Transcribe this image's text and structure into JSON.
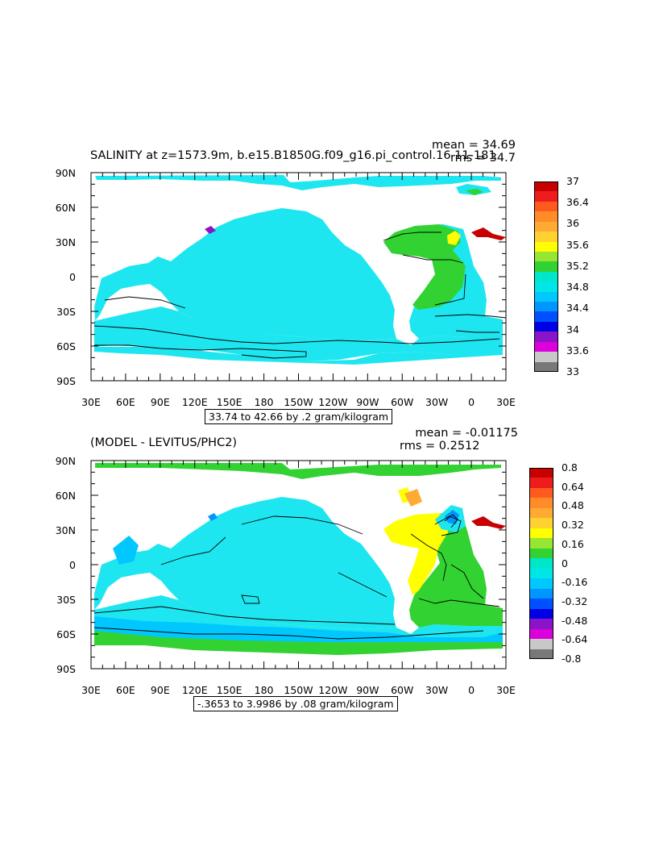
{
  "panels": [
    {
      "title": "SALINITY at z=1573.9m, b.e15.B1850G.f09_g16.pi_control.16 11-181",
      "mean": "mean = 34.69",
      "rms": "rms = 34.7",
      "contour_info": "33.74 to 42.66 by .2 gram/kilogram",
      "y_ticks": [
        "90N",
        "60N",
        "30N",
        "0",
        "30S",
        "60S",
        "90S"
      ],
      "x_ticks": [
        "30E",
        "60E",
        "90E",
        "120E",
        "150E",
        "180",
        "150W",
        "120W",
        "90W",
        "60W",
        "30W",
        "0",
        "30E"
      ],
      "colorbar_labels": [
        "37",
        "36.4",
        "36",
        "35.6",
        "35.2",
        "34.8",
        "34.4",
        "34",
        "33.6",
        "33"
      ],
      "colorbar_colors": [
        "#c80000",
        "#ee1c1c",
        "#ff5a1e",
        "#ff8c28",
        "#ffaa32",
        "#ffd232",
        "#ffff00",
        "#96e632",
        "#32d232",
        "#00e6c8",
        "#00e6e6",
        "#00c8ff",
        "#0096ff",
        "#0050ff",
        "#0000e6",
        "#8c14c8",
        "#dc00dc",
        "#c8c8c8",
        "#787878"
      ]
    },
    {
      "title": "(MODEL - LEVITUS/PHC2)",
      "mean": "mean = -0.01175",
      "rms": "rms = 0.2512",
      "contour_info": "-.3653 to 3.9986 by .08 gram/kilogram",
      "y_ticks": [
        "90N",
        "60N",
        "30N",
        "0",
        "30S",
        "60S",
        "90S"
      ],
      "x_ticks": [
        "30E",
        "60E",
        "90E",
        "120E",
        "150E",
        "180",
        "150W",
        "120W",
        "90W",
        "60W",
        "30W",
        "0",
        "30E"
      ],
      "colorbar_labels": [
        "0.8",
        "0.64",
        "0.48",
        "0.32",
        "0.16",
        "0",
        "-0.16",
        "-0.32",
        "-0.48",
        "-0.64",
        "-0.8"
      ],
      "colorbar_colors": [
        "#c80000",
        "#ee1c1c",
        "#ff5a1e",
        "#ff8c28",
        "#ffaa32",
        "#ffd232",
        "#ffff00",
        "#96e632",
        "#32d232",
        "#00e6c8",
        "#00e6e6",
        "#00c8ff",
        "#0096ff",
        "#0050ff",
        "#0000e6",
        "#8c14c8",
        "#dc00dc",
        "#c8c8c8",
        "#787878"
      ]
    }
  ],
  "map_colors": {
    "panel1_base": "#1ee6f0",
    "panel1_deep": "#00c8ff",
    "panel1_green": "#32d232",
    "panel1_yellow": "#ffff00",
    "panel1_red": "#c80000",
    "panel1_purple": "#8c14c8",
    "panel2_base": "#1ee6f0",
    "panel2_lowblue": "#00c8ff",
    "panel2_green": "#32d232",
    "panel2_yellow": "#ffff00",
    "panel2_orange": "#ffaa32",
    "panel2_red": "#c80000"
  }
}
